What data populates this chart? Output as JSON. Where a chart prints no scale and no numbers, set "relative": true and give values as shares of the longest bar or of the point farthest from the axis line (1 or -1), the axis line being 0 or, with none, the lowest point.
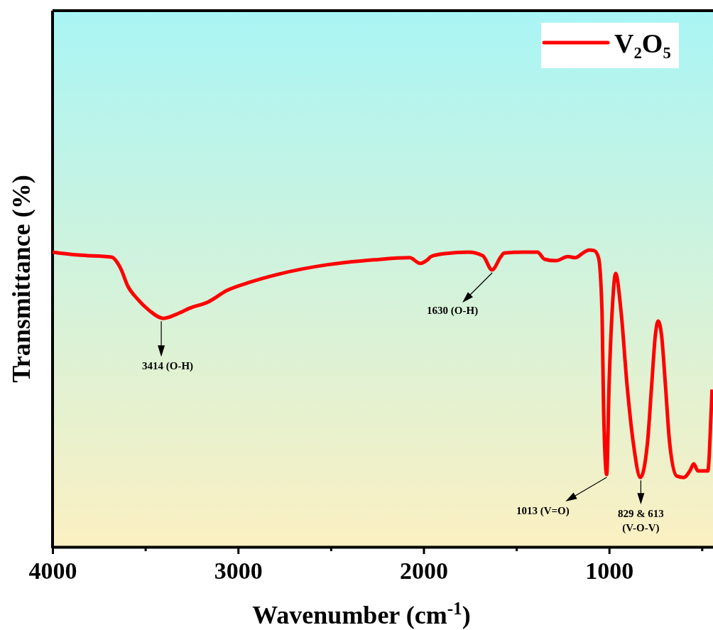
{
  "chart_data": {
    "type": "line",
    "relative": true,
    "xlabel": "Wavenumber (cm$^{-1}$)",
    "ylabel": "Transmittance (%)",
    "xlim": [
      4000,
      440
    ],
    "xticks": [
      4000,
      {
        "value": 3500,
        "label": null
      },
      3000,
      {
        "value": 2500,
        "label": null
      },
      2000,
      {
        "value": 1500,
        "label": null
      },
      1000,
      {
        "value": 500,
        "label": null
      }
    ],
    "legend": "top right",
    "line_style": "solid",
    "marker": "none",
    "tick_labels": "x",
    "series": [
      {
        "name": "V₂O₅",
        "color": "#ff0000",
        "x": [
          4000,
          3862,
          3682,
          3633,
          3594,
          3545,
          3480,
          3403,
          3338,
          3261,
          3162,
          3059,
          2944,
          2779,
          2523,
          2266,
          2075,
          2018,
          1979,
          1960,
          1884,
          1757,
          1681,
          1631,
          1585,
          1566,
          1463,
          1386,
          1348,
          1287,
          1222,
          1183,
          1134,
          1107,
          1080,
          1057,
          1038,
          1030,
          1013,
          1000,
          984,
          965,
          935,
          904,
          870,
          831,
          793,
          770,
          751,
          736,
          717,
          697,
          674,
          636,
          598,
          563,
          544,
          521,
          468,
          449,
          445
        ],
        "values": [
          0.993,
          0.983,
          0.976,
          0.938,
          0.878,
          0.837,
          0.797,
          0.77,
          0.782,
          0.804,
          0.825,
          0.864,
          0.89,
          0.919,
          0.95,
          0.967,
          0.974,
          0.955,
          0.967,
          0.978,
          0.988,
          0.993,
          0.981,
          0.933,
          0.976,
          0.99,
          0.993,
          0.993,
          0.969,
          0.964,
          0.978,
          0.974,
          0.993,
          1.0,
          0.998,
          0.974,
          0.789,
          0.471,
          0.244,
          0.55,
          0.789,
          0.921,
          0.789,
          0.55,
          0.352,
          0.234,
          0.352,
          0.55,
          0.711,
          0.761,
          0.711,
          0.55,
          0.352,
          0.239,
          0.234,
          0.258,
          0.28,
          0.256,
          0.256,
          0.471,
          0.53
        ]
      }
    ],
    "annotations": [
      {
        "text": "3414 (O-H)",
        "x": 3414,
        "y": 0.77
      },
      {
        "text": "1630 (O-H)",
        "x": 1630,
        "y": 0.933
      },
      {
        "text": "1013 (V=O)",
        "x": 1013,
        "y": 0.244
      },
      {
        "text": "829 & 613\n(V-O-V)",
        "x": 829,
        "y": 0.234
      }
    ]
  }
}
